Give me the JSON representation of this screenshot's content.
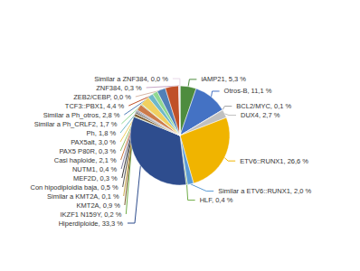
{
  "chart_data": {
    "type": "pie",
    "categories": [
      "iAMP21, 5,3 %",
      "Otros-B, 11,1 %",
      "BCL2/MYC, 0,1 %",
      "DUX4, 2,7 %",
      "ETV6::RUNX1, 26,6 %",
      "Similar a ETV6::RUNX1, 2,0 %",
      "HLF, 0,4 %",
      "Hiperdiploide, 33,3 %",
      "IKZF1 N159Y, 0,2 %",
      "KMT2A, 0,9 %",
      "Similar a KMT2A, 0,1 %",
      "Con hipodiploidia baja, 0,5 %",
      "MEF2D, 0,3 %",
      "NUTM1, 0,4 %",
      "Casi haploide, 2,1 %",
      "PAX5 P80R, 0,3 %",
      "PAX5alt, 3,0 %",
      "Ph, 1,8 %",
      "Similar a Ph_CRLF2, 1,7 %",
      "Similar a Ph_otros, 2,8 %",
      "TCF3::PBX1, 4,4 %",
      "ZEB2/CEBP, 0,0 %",
      "ZNF384, 0,3 %",
      "Similar a ZNF384, 0,0 %"
    ],
    "values": [
      5.3,
      11.1,
      0.1,
      2.7,
      26.6,
      2.0,
      0.4,
      33.3,
      0.2,
      0.9,
      0.1,
      0.5,
      0.3,
      0.4,
      2.1,
      0.3,
      3.0,
      1.8,
      1.7,
      2.8,
      4.4,
      0.05,
      0.3,
      0.05
    ],
    "colors": [
      "#4e8c3e",
      "#4472c4",
      "#a6a6a6",
      "#c0c0c0",
      "#f0b400",
      "#5b9bd5",
      "#70ad47",
      "#2e4d8e",
      "#70ad47",
      "#7b5a2e",
      "#c9a84c",
      "#595959",
      "#3a3a3a",
      "#8080a0",
      "#cc7a4a",
      "#92c06a",
      "#f0d060",
      "#70b8c8",
      "#90d890",
      "#5080b8",
      "#c05028",
      "#d8b8a8",
      "#c8a8c8",
      "#e8d8e8"
    ]
  }
}
